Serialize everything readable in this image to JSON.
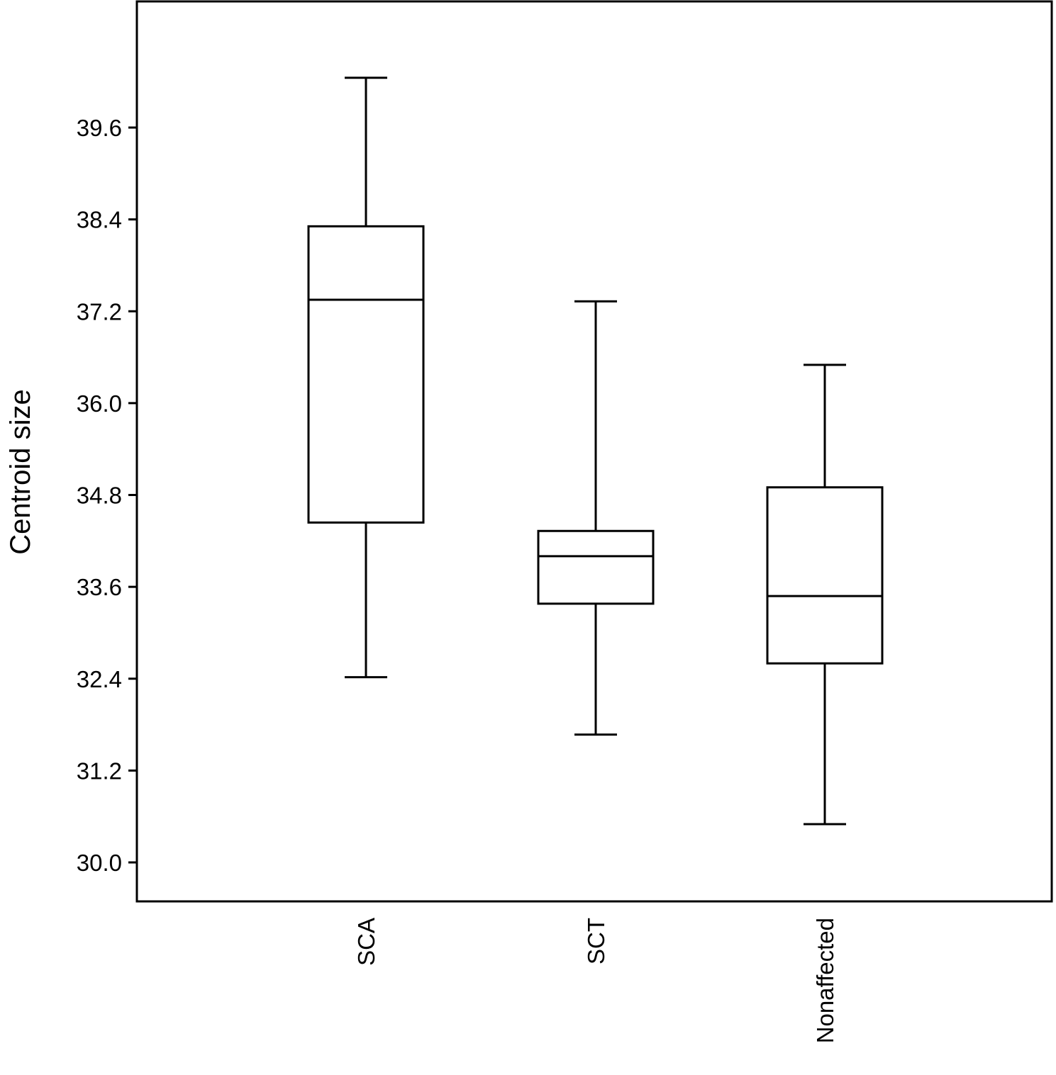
{
  "chart_data": {
    "type": "boxplot",
    "ylabel": "Centroid size",
    "xlabel": "",
    "ylim": [
      29.5,
      41.2
    ],
    "yticks": [
      30.0,
      31.2,
      32.4,
      33.6,
      34.8,
      36.0,
      37.2,
      38.4,
      39.6
    ],
    "ytick_labels": [
      "30.0",
      "31.2",
      "32.4",
      "33.6",
      "34.8",
      "36.0",
      "37.2",
      "38.4",
      "39.6"
    ],
    "categories": [
      "SCA",
      "SCT",
      "Nonaffected"
    ],
    "boxes": [
      {
        "category": "SCA",
        "whisker_low": 32.42,
        "q1": 34.44,
        "median": 37.35,
        "q3": 38.31,
        "whisker_high": 40.25
      },
      {
        "category": "SCT",
        "whisker_low": 31.67,
        "q1": 33.38,
        "median": 34.0,
        "q3": 34.33,
        "whisker_high": 37.33
      },
      {
        "category": "Nonaffected",
        "whisker_low": 30.5,
        "q1": 32.6,
        "median": 33.48,
        "q3": 34.9,
        "whisker_high": 36.5
      }
    ],
    "grid": false,
    "legend": "none"
  }
}
